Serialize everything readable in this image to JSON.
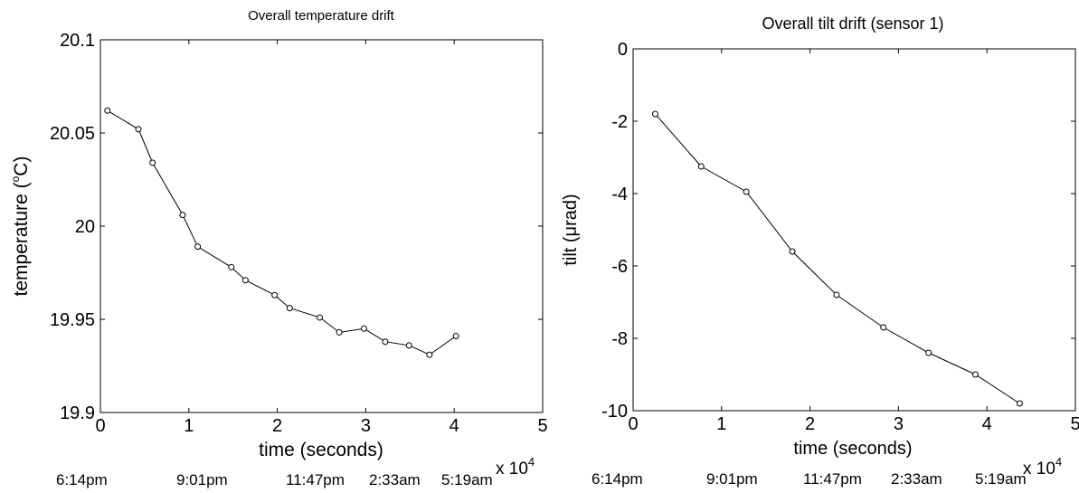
{
  "chart_data": [
    {
      "type": "line",
      "title": "Overall temperature drift",
      "xlabel": "time (seconds)",
      "ylabel_main": "temperature (",
      "ylabel_sup": "o",
      "ylabel_tail": "C)",
      "xlim": [
        0,
        50000
      ],
      "ylim": [
        19.9,
        20.1
      ],
      "x_ticks": [
        0,
        10000,
        20000,
        30000,
        40000,
        50000
      ],
      "x_tick_labels": [
        "0",
        "1",
        "2",
        "3",
        "4",
        "5"
      ],
      "y_ticks": [
        19.9,
        19.95,
        20.0,
        20.05,
        20.1
      ],
      "y_tick_labels": [
        "19.9",
        "19.95",
        "20",
        "20.05",
        "20.1"
      ],
      "x_multiplier": "x 10",
      "x_multiplier_exp": "4",
      "clock_labels": [
        "6:14pm",
        "9:01pm",
        "11:47pm",
        "2:33am",
        "5:19am"
      ],
      "grid": false,
      "series": [
        {
          "x": [
            800,
            4300,
            5900,
            9300,
            11000,
            14800,
            16400,
            19700,
            21400,
            24800,
            27000,
            29800,
            32200,
            34900,
            37200,
            40200
          ],
          "y": [
            20.062,
            20.052,
            20.034,
            20.006,
            19.989,
            19.978,
            19.971,
            19.963,
            19.956,
            19.951,
            19.943,
            19.945,
            19.938,
            19.936,
            19.931,
            19.941
          ]
        }
      ]
    },
    {
      "type": "line",
      "title": "Overall tilt drift (sensor 1)",
      "xlabel": "time (seconds)",
      "ylabel_main": "tilt (μrad)",
      "xlim": [
        0,
        50000
      ],
      "ylim": [
        -10,
        0
      ],
      "x_ticks": [
        0,
        10000,
        20000,
        30000,
        40000,
        50000
      ],
      "x_tick_labels": [
        "0",
        "1",
        "2",
        "3",
        "4",
        "5"
      ],
      "y_ticks": [
        0,
        -2,
        -4,
        -6,
        -8,
        -10
      ],
      "y_tick_labels": [
        "0",
        "-2",
        "-4",
        "-6",
        "-8",
        "-10"
      ],
      "x_multiplier": "x 10",
      "x_multiplier_exp": "4",
      "clock_labels": [
        "6:14pm",
        "9:01pm",
        "11:47pm",
        "2:33am",
        "5:19am"
      ],
      "grid": false,
      "series": [
        {
          "x": [
            2500,
            7700,
            12800,
            18000,
            23000,
            28300,
            33400,
            38700,
            43700
          ],
          "y": [
            -1.8,
            -3.25,
            -3.95,
            -5.6,
            -6.8,
            -7.7,
            -8.4,
            -9.0,
            -9.8
          ]
        }
      ]
    }
  ]
}
